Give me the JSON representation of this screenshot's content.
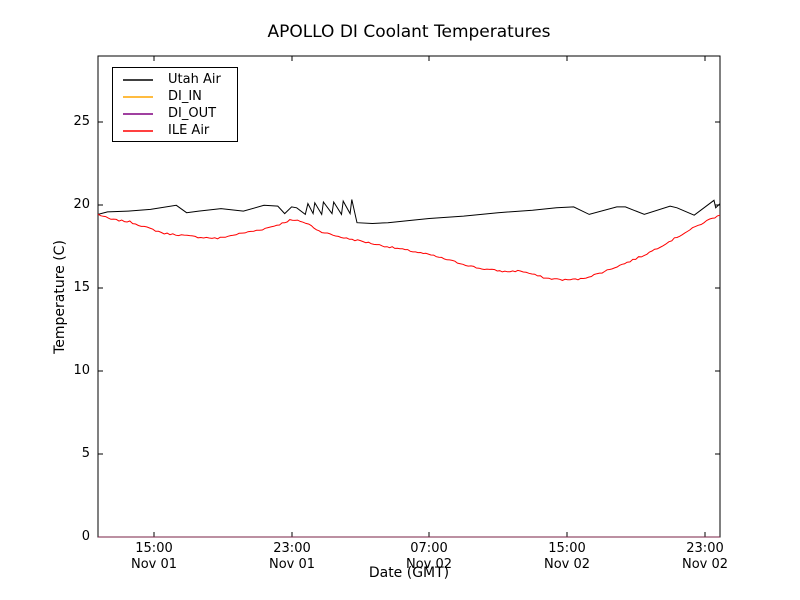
{
  "figure": {
    "background": "#ffffff"
  },
  "chart_data": {
    "type": "line",
    "title": "APOLLO DI Coolant Temperatures",
    "xlabel": "Date (GMT)",
    "ylabel": "Temperature (C)",
    "x_units": "hours since Nov 01 00:00 GMT",
    "xlim": [
      11.75,
      47.9
    ],
    "ylim": [
      0,
      29
    ],
    "grid": false,
    "yticks": [
      0,
      5,
      10,
      15,
      20,
      25
    ],
    "xticks": [
      {
        "hour": 15,
        "line1": "15:00",
        "line2": "Nov 01"
      },
      {
        "hour": 23,
        "line1": "23:00",
        "line2": "Nov 01"
      },
      {
        "hour": 31,
        "line1": "07:00",
        "line2": "Nov 02"
      },
      {
        "hour": 39,
        "line1": "15:00",
        "line2": "Nov 02"
      },
      {
        "hour": 47,
        "line1": "23:00",
        "line2": "Nov 02"
      }
    ],
    "legend": {
      "position": "upper-left",
      "items": [
        "Utah Air",
        "DI_IN",
        "DI_OUT",
        "ILE Air"
      ]
    },
    "series": [
      {
        "name": "Utah Air",
        "color": "#000000",
        "noise": 0,
        "opacity": 1,
        "points": [
          [
            11.75,
            19.45
          ],
          [
            12.3,
            19.6
          ],
          [
            13.5,
            19.65
          ],
          [
            14.8,
            19.75
          ],
          [
            16.3,
            20.0
          ],
          [
            16.9,
            19.55
          ],
          [
            17.6,
            19.65
          ],
          [
            18.9,
            19.8
          ],
          [
            20.2,
            19.65
          ],
          [
            21.4,
            20.0
          ],
          [
            22.2,
            19.95
          ],
          [
            22.6,
            19.5
          ],
          [
            23.0,
            19.9
          ],
          [
            23.3,
            19.85
          ],
          [
            23.8,
            19.45
          ],
          [
            23.95,
            20.1
          ],
          [
            24.25,
            19.5
          ],
          [
            24.35,
            20.15
          ],
          [
            24.75,
            19.45
          ],
          [
            24.85,
            20.2
          ],
          [
            25.35,
            19.5
          ],
          [
            25.45,
            20.2
          ],
          [
            25.9,
            19.45
          ],
          [
            26.0,
            20.25
          ],
          [
            26.4,
            19.5
          ],
          [
            26.5,
            20.35
          ],
          [
            26.8,
            18.95
          ],
          [
            27.7,
            18.9
          ],
          [
            28.6,
            18.95
          ],
          [
            30.0,
            19.1
          ],
          [
            31.0,
            19.2
          ],
          [
            33.0,
            19.35
          ],
          [
            35.0,
            19.55
          ],
          [
            37.0,
            19.7
          ],
          [
            38.4,
            19.85
          ],
          [
            39.4,
            19.9
          ],
          [
            40.3,
            19.45
          ],
          [
            41.9,
            19.9
          ],
          [
            42.4,
            19.9
          ],
          [
            43.5,
            19.45
          ],
          [
            45.0,
            19.95
          ],
          [
            45.4,
            19.85
          ],
          [
            46.4,
            19.4
          ],
          [
            47.55,
            20.3
          ],
          [
            47.65,
            19.85
          ],
          [
            47.9,
            20.1
          ]
        ]
      },
      {
        "name": "DI_IN",
        "color": "#ffa500",
        "noise": 0,
        "opacity": 0.45,
        "points": [
          [
            11.75,
            0
          ],
          [
            47.9,
            0
          ]
        ]
      },
      {
        "name": "DI_OUT",
        "color": "#800080",
        "noise": 0,
        "opacity": 0.55,
        "points": [
          [
            11.75,
            0
          ],
          [
            47.9,
            0
          ]
        ]
      },
      {
        "name": "ILE Air",
        "color": "#ff0000",
        "noise": 0.05,
        "opacity": 1,
        "points": [
          [
            11.75,
            19.45
          ],
          [
            12.5,
            19.15
          ],
          [
            13.6,
            19.0
          ],
          [
            14.6,
            18.65
          ],
          [
            15.6,
            18.3
          ],
          [
            16.6,
            18.2
          ],
          [
            17.4,
            18.1
          ],
          [
            18.7,
            18.0
          ],
          [
            19.6,
            18.2
          ],
          [
            20.3,
            18.35
          ],
          [
            21.3,
            18.55
          ],
          [
            22.3,
            18.85
          ],
          [
            22.9,
            19.1
          ],
          [
            23.5,
            19.05
          ],
          [
            24.0,
            18.85
          ],
          [
            24.6,
            18.45
          ],
          [
            25.4,
            18.2
          ],
          [
            26.2,
            18.0
          ],
          [
            27.0,
            17.85
          ],
          [
            28.1,
            17.6
          ],
          [
            29.9,
            17.25
          ],
          [
            31.1,
            17.0
          ],
          [
            32.8,
            16.5
          ],
          [
            33.9,
            16.2
          ],
          [
            35.4,
            16.0
          ],
          [
            36.3,
            16.05
          ],
          [
            36.8,
            15.9
          ],
          [
            37.8,
            15.6
          ],
          [
            38.9,
            15.5
          ],
          [
            39.8,
            15.55
          ],
          [
            40.9,
            15.9
          ],
          [
            42.5,
            16.55
          ],
          [
            43.5,
            17.0
          ],
          [
            44.4,
            17.5
          ],
          [
            45.1,
            17.9
          ],
          [
            46.3,
            18.6
          ],
          [
            47.3,
            19.15
          ],
          [
            47.9,
            19.4
          ]
        ]
      }
    ]
  }
}
